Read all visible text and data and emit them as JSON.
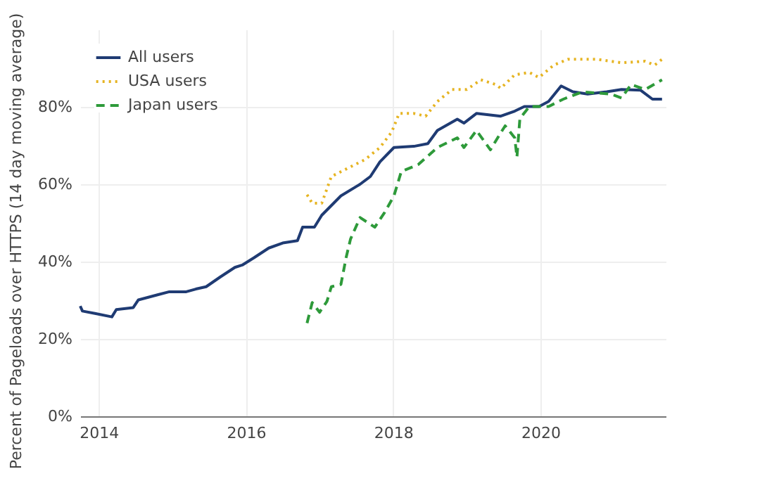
{
  "chart_data": {
    "type": "line",
    "ylabel": "Percent of Pageloads over HTTPS (14 day moving average)",
    "xlim": [
      2013.75,
      2021.7
    ],
    "xticks": [
      2014,
      2016,
      2018,
      2020
    ],
    "ylim": [
      0,
      100
    ],
    "yticks": [
      {
        "value": 0,
        "label": "0%"
      },
      {
        "value": 20,
        "label": "20%"
      },
      {
        "value": 40,
        "label": "40%"
      },
      {
        "value": 60,
        "label": "60%"
      },
      {
        "value": 80,
        "label": "80%"
      }
    ],
    "grid": true,
    "legend": "top left",
    "marker": "none",
    "series": [
      {
        "name": "All users",
        "color": "#1f3b73",
        "line_style": "solid",
        "x": [
          2013.75,
          2013.78,
          2013.95,
          2014.18,
          2014.24,
          2014.47,
          2014.54,
          2014.8,
          2014.96,
          2015.19,
          2015.32,
          2015.46,
          2015.65,
          2015.85,
          2015.95,
          2016.11,
          2016.31,
          2016.5,
          2016.7,
          2016.77,
          2016.93,
          2017.03,
          2017.29,
          2017.55,
          2017.69,
          2017.82,
          2018.01,
          2018.28,
          2018.47,
          2018.6,
          2018.87,
          2018.96,
          2019.13,
          2019.46,
          2019.65,
          2019.78,
          2019.98,
          2020.11,
          2020.28,
          2020.44,
          2020.64,
          2020.9,
          2021.1,
          2021.36,
          2021.52,
          2021.65
        ],
        "values": [
          28.5,
          27.2,
          26.6,
          25.7,
          27.6,
          28.1,
          30.1,
          31.4,
          32.2,
          32.2,
          32.9,
          33.5,
          36,
          38.5,
          39.1,
          41,
          43.5,
          44.8,
          45.4,
          48.9,
          48.9,
          52,
          57,
          60,
          62,
          65.8,
          69.5,
          69.8,
          70.5,
          73.9,
          76.8,
          75.8,
          78.3,
          77.6,
          78.9,
          80.1,
          80.1,
          81.4,
          85.4,
          83.9,
          83.3,
          83.9,
          84.5,
          84.3,
          82,
          82
        ]
      },
      {
        "name": "USA users",
        "color": "#e6b422",
        "line_style": "dotted",
        "x": [
          2016.83,
          2016.9,
          2017.03,
          2017.16,
          2017.42,
          2017.62,
          2017.82,
          2017.98,
          2018.08,
          2018.28,
          2018.44,
          2018.6,
          2018.8,
          2019.0,
          2019.19,
          2019.39,
          2019.46,
          2019.65,
          2019.85,
          2019.98,
          2020.18,
          2020.37,
          2020.77,
          2021.1,
          2021.42,
          2021.55,
          2021.65
        ],
        "values": [
          57.3,
          55.1,
          55.1,
          62,
          64.5,
          66.4,
          69.5,
          73.5,
          78.3,
          78.3,
          77.6,
          81.4,
          84.5,
          84.5,
          87,
          85.8,
          84.8,
          88.3,
          88.9,
          87.6,
          90.8,
          92.3,
          92.3,
          91.4,
          91.8,
          90.8,
          92.3
        ]
      },
      {
        "name": "Japan users",
        "color": "#2e9a3a",
        "line_style": "dashed",
        "x": [
          2016.83,
          2016.9,
          2017.0,
          2017.1,
          2017.16,
          2017.29,
          2017.36,
          2017.42,
          2017.55,
          2017.75,
          2017.88,
          2018.01,
          2018.11,
          2018.34,
          2018.6,
          2018.87,
          2018.96,
          2019.13,
          2019.32,
          2019.46,
          2019.52,
          2019.65,
          2019.68,
          2019.72,
          2019.85,
          2020.11,
          2020.31,
          2020.57,
          2020.96,
          2021.1,
          2021.23,
          2021.42,
          2021.65
        ],
        "values": [
          24.1,
          29.4,
          26.9,
          29.7,
          33.5,
          34.1,
          41,
          45.8,
          51.4,
          48.9,
          52.6,
          57,
          63.3,
          65.1,
          69.5,
          72,
          69.5,
          73.9,
          68.9,
          73.3,
          75.1,
          72,
          67,
          77,
          80.1,
          80.1,
          82,
          83.9,
          83.3,
          82.3,
          85.8,
          84.5,
          87
        ]
      }
    ]
  }
}
